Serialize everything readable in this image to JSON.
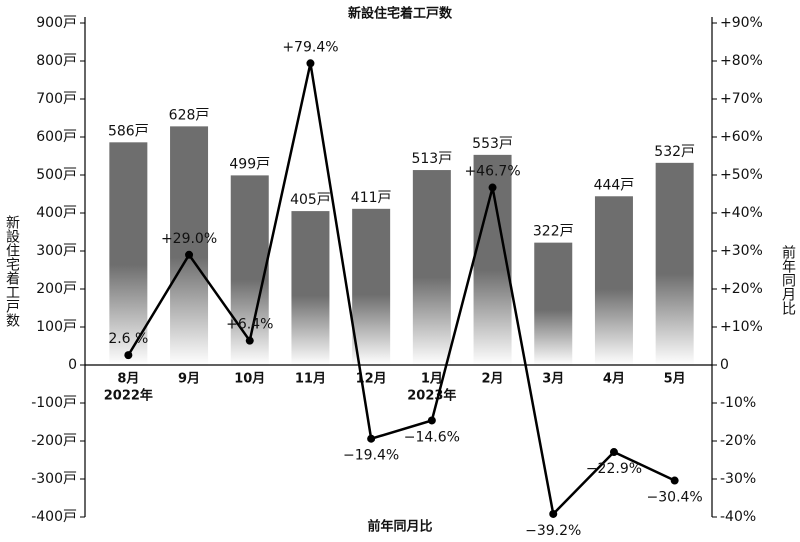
{
  "chart_data": {
    "type": "combo",
    "title": "新設住宅着工戸数",
    "y_label": "新設住宅着工戸数",
    "y2_label": "前年同月比",
    "x_label": "前年同月比",
    "categories": [
      "8月",
      "9月",
      "10月",
      "11月",
      "12月",
      "1月",
      "2月",
      "3月",
      "4月",
      "5月"
    ],
    "category_sublabels": [
      "2022年",
      null,
      null,
      null,
      null,
      "2023年",
      null,
      null,
      null,
      null
    ],
    "ylim": [
      -400,
      900
    ],
    "yticks": [
      {
        "value": 900,
        "label": "900戸"
      },
      {
        "value": 800,
        "label": "800戸"
      },
      {
        "value": 700,
        "label": "700戸"
      },
      {
        "value": 600,
        "label": "600戸"
      },
      {
        "value": 500,
        "label": "500戸"
      },
      {
        "value": 400,
        "label": "400戸"
      },
      {
        "value": 300,
        "label": "300戸"
      },
      {
        "value": 200,
        "label": "200戸"
      },
      {
        "value": 100,
        "label": "100戸"
      },
      0,
      {
        "value": -100,
        "label": "-100戸"
      },
      {
        "value": -200,
        "label": "-200戸"
      },
      {
        "value": -300,
        "label": "-300戸"
      },
      {
        "value": -400,
        "label": "-400戸"
      }
    ],
    "y2lim": [
      -40,
      90
    ],
    "y2ticks": [
      {
        "value": 90,
        "label": "+90%"
      },
      {
        "value": 80,
        "label": "+80%"
      },
      {
        "value": 70,
        "label": "+70%"
      },
      {
        "value": 60,
        "label": "+60%"
      },
      {
        "value": 50,
        "label": "+50%"
      },
      {
        "value": 40,
        "label": "+40%"
      },
      {
        "value": 30,
        "label": "+30%"
      },
      {
        "value": 20,
        "label": "+20%"
      },
      {
        "value": 10,
        "label": "+10%"
      },
      0,
      {
        "value": -10,
        "label": "-10%"
      },
      {
        "value": -20,
        "label": "-20%"
      },
      {
        "value": -30,
        "label": "-30%"
      },
      {
        "value": -40,
        "label": "-40%"
      }
    ],
    "series": [
      {
        "type": "bar",
        "color": "#6e6e6e",
        "values": [
          586,
          628,
          499,
          405,
          411,
          513,
          553,
          322,
          444,
          532
        ],
        "value_labels": [
          "586戸",
          "628戸",
          "499戸",
          "405戸",
          "411戸",
          "513戸",
          "553戸",
          "322戸",
          "444戸",
          "532戸"
        ]
      },
      {
        "type": "line",
        "axis": "y2",
        "color": "#000000",
        "values": [
          2.6,
          29.0,
          6.4,
          79.4,
          -19.4,
          -14.6,
          46.7,
          -39.2,
          -22.9,
          -30.4
        ],
        "value_labels": [
          "2.6 %",
          "+29.0%",
          "+6.4%",
          "+79.4%",
          "−19.4%",
          "−14.6%",
          "+46.7%",
          "−39.2%",
          "−22.9%",
          "−30.4%"
        ]
      }
    ]
  }
}
